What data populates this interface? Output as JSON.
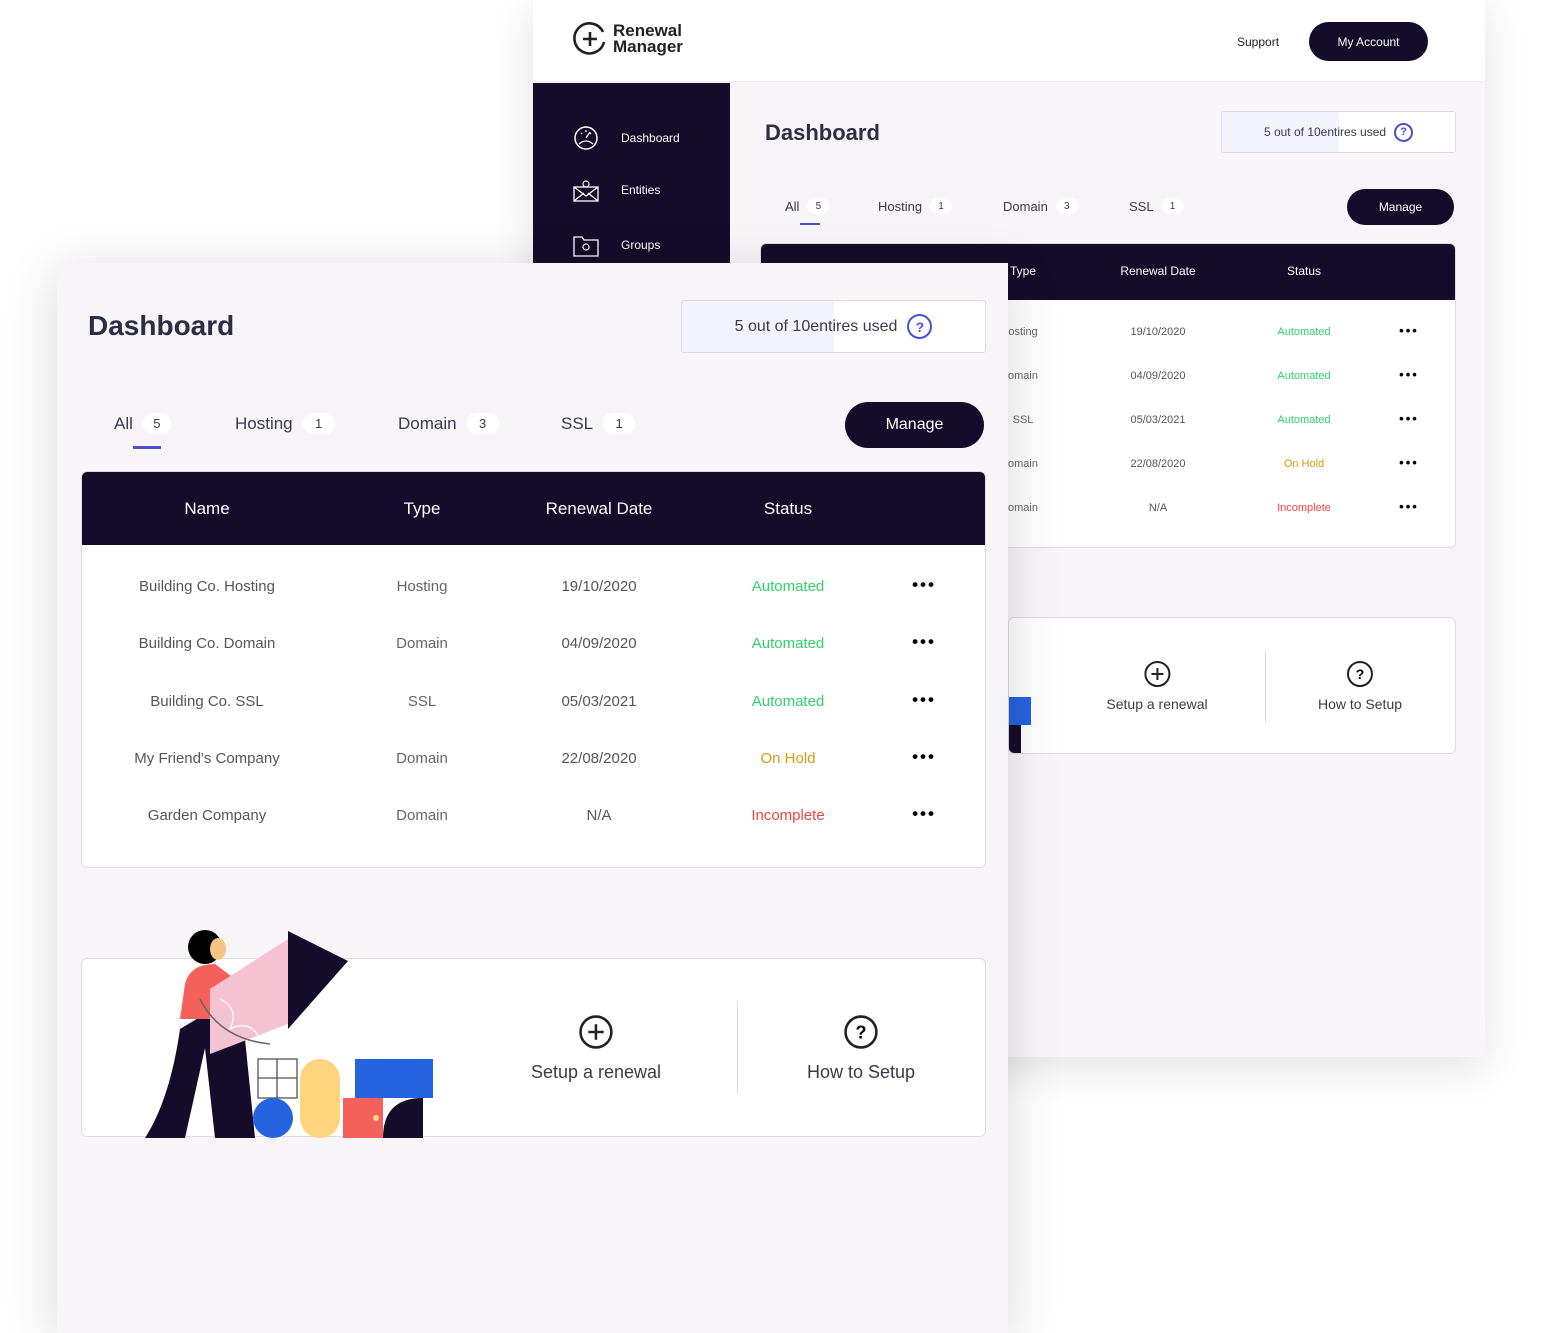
{
  "brand": {
    "line1": "Renewal",
    "line2": "Manager"
  },
  "header": {
    "support": "Support",
    "account": "My Account"
  },
  "sidebar": {
    "items": [
      {
        "label": "Dashboard",
        "icon": "gauge-icon"
      },
      {
        "label": "Entities",
        "icon": "envelope-bulb-icon"
      },
      {
        "label": "Groups",
        "icon": "folder-bulb-icon"
      }
    ]
  },
  "dashboard": {
    "title": "Dashboard",
    "usage": {
      "bold": "5 out of 10",
      "rest": " entires used",
      "used": 5,
      "total": 10,
      "help": "?"
    },
    "tabs": [
      {
        "label": "All",
        "count": "5",
        "active": true
      },
      {
        "label": "Hosting",
        "count": "1"
      },
      {
        "label": "Domain",
        "count": "3"
      },
      {
        "label": "SSL",
        "count": "1"
      }
    ],
    "manage": "Manage",
    "columns": [
      "Name",
      "Type",
      "Renewal Date",
      "Status"
    ],
    "rows": [
      {
        "name": "Building Co. Hosting",
        "type": "Hosting",
        "date": "19/10/2020",
        "status": "Automated"
      },
      {
        "name": "Building Co. Domain",
        "type": "Domain",
        "date": "04/09/2020",
        "status": "Automated"
      },
      {
        "name": "Building Co. SSL",
        "type": "SSL",
        "date": "05/03/2021",
        "status": "Automated"
      },
      {
        "name": "My Friend's Company",
        "type": "Domain",
        "date": "22/08/2020",
        "status": "On Hold"
      },
      {
        "name": "Garden Company",
        "type": "Domain",
        "date": "N/A",
        "status": "Incomplete"
      }
    ],
    "row_menu": "•••",
    "back_types": [
      "osting",
      "omain",
      "SSL",
      "omain",
      "omain"
    ],
    "back_type_header": "Type",
    "actions": {
      "setup": "Setup a renewal",
      "how": "How to Setup"
    }
  },
  "colors": {
    "navy": "#150c2b",
    "accent": "#4b4fd1",
    "automated": "#2fd36a",
    "on_hold": "#d69a10",
    "incomplete": "#f04545"
  }
}
